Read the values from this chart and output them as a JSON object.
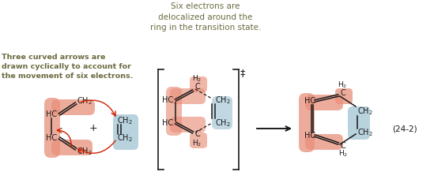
{
  "bg_color": "#ffffff",
  "salmon_color": "#E8907A",
  "blue_color": "#A0C4D4",
  "text_color": "#6B6B40",
  "arrow_color": "#CC2200",
  "bond_color": "#1A1A1A",
  "title_text": "Six electrons are\ndelocalized around the\nring in the transition state.",
  "left_label": "Three curved arrows are\ndrawn cyclically to account for\nthe movement of six electrons.",
  "eq_label": "(24-2)",
  "fig_width": 5.49,
  "fig_height": 2.46,
  "dpi": 100
}
